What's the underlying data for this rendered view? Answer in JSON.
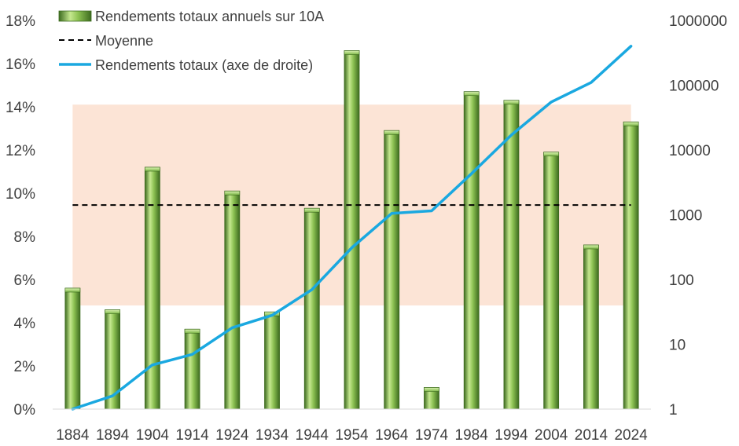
{
  "chart_data": {
    "type": "bar",
    "categories": [
      "1884",
      "1894",
      "1904",
      "1914",
      "1924",
      "1934",
      "1944",
      "1954",
      "1964",
      "1974",
      "1984",
      "1994",
      "2004",
      "2014",
      "2024"
    ],
    "series": [
      {
        "name": "Rendements totaux annuels sur 10A",
        "type": "bar",
        "axis": "left",
        "unit": "%",
        "values": [
          5.6,
          4.6,
          11.2,
          3.7,
          10.1,
          4.5,
          9.3,
          16.6,
          12.9,
          1.0,
          14.7,
          14.3,
          11.9,
          7.6,
          13.3
        ]
      },
      {
        "name": "Moyenne",
        "type": "line",
        "style": "dashed",
        "axis": "left",
        "unit": "%",
        "values": [
          9.45,
          9.45,
          9.45,
          9.45,
          9.45,
          9.45,
          9.45,
          9.45,
          9.45,
          9.45,
          9.45,
          9.45,
          9.45,
          9.45,
          9.45
        ]
      },
      {
        "name": "Rendements totaux (axe de droite)",
        "type": "line",
        "axis": "right",
        "values": [
          1,
          1.6,
          4.8,
          7,
          18,
          28,
          70,
          310,
          1050,
          1150,
          4300,
          17000,
          55000,
          110000,
          400000
        ]
      }
    ],
    "band": {
      "axis": "left",
      "from": 4.8,
      "to": 14.1,
      "color": "#fce4d6"
    },
    "y_left": {
      "min": 0,
      "max": 18,
      "step": 2,
      "tick_labels": [
        "0%",
        "2%",
        "4%",
        "6%",
        "8%",
        "10%",
        "12%",
        "14%",
        "16%",
        "18%"
      ]
    },
    "y_right": {
      "scale": "log",
      "min": 1,
      "max": 1000000,
      "tick_labels": [
        "1",
        "10",
        "100",
        "1000",
        "10000",
        "100000",
        "1000000"
      ]
    },
    "legend": {
      "placement": "top-left",
      "entries": [
        "Rendements totaux annuels sur 10A",
        "Moyenne",
        "Rendements totaux (axe de droite)"
      ]
    },
    "colors": {
      "bar": "#70ad47",
      "bar_light": "#c5e88f",
      "bar_dark": "#3d6b1f",
      "mean_line": "#000000",
      "total_line": "#1aa8e0",
      "band": "#fce4d6",
      "axis_text": "#404040"
    },
    "title": "",
    "xlabel": "",
    "ylabel": ""
  }
}
